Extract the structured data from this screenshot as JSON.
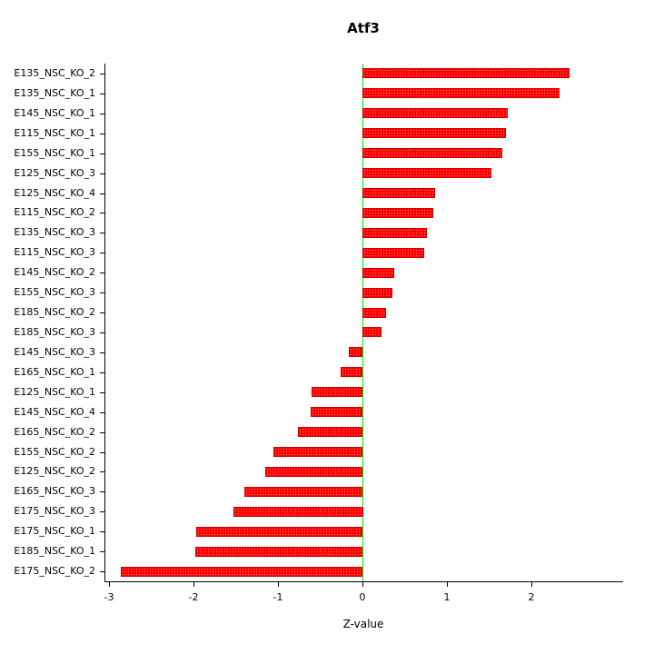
{
  "chart_data": {
    "type": "bar",
    "orientation": "horizontal",
    "title": "Atf3",
    "xlabel": "Z-value",
    "categories": [
      "E135_NSC_KO_2",
      "E135_NSC_KO_1",
      "E145_NSC_KO_1",
      "E115_NSC_KO_1",
      "E155_NSC_KO_1",
      "E125_NSC_KO_3",
      "E125_NSC_KO_4",
      "E115_NSC_KO_2",
      "E135_NSC_KO_3",
      "E115_NSC_KO_3",
      "E145_NSC_KO_2",
      "E155_NSC_KO_3",
      "E185_NSC_KO_2",
      "E185_NSC_KO_3",
      "E145_NSC_KO_3",
      "E165_NSC_KO_1",
      "E125_NSC_KO_1",
      "E145_NSC_KO_4",
      "E165_NSC_KO_2",
      "E155_NSC_KO_2",
      "E125_NSC_KO_2",
      "E165_NSC_KO_3",
      "E175_NSC_KO_3",
      "E175_NSC_KO_1",
      "E185_NSC_KO_1",
      "E175_NSC_KO_2"
    ],
    "values": [
      2.45,
      2.33,
      1.72,
      1.7,
      1.65,
      1.52,
      0.86,
      0.84,
      0.76,
      0.73,
      0.38,
      0.35,
      0.28,
      0.23,
      -0.16,
      -0.26,
      -0.6,
      -0.61,
      -0.76,
      -1.05,
      -1.15,
      -1.4,
      -1.53,
      -1.97,
      -1.98,
      -2.86
    ],
    "xlim": [
      -3.05,
      3.07
    ],
    "xticks": [
      -3,
      -2,
      -1,
      0,
      1,
      2
    ],
    "bar_color": "#FF0000",
    "bar_border": "#D40000",
    "zero_line_color": "#00EE00",
    "grid": false,
    "legend": null
  }
}
